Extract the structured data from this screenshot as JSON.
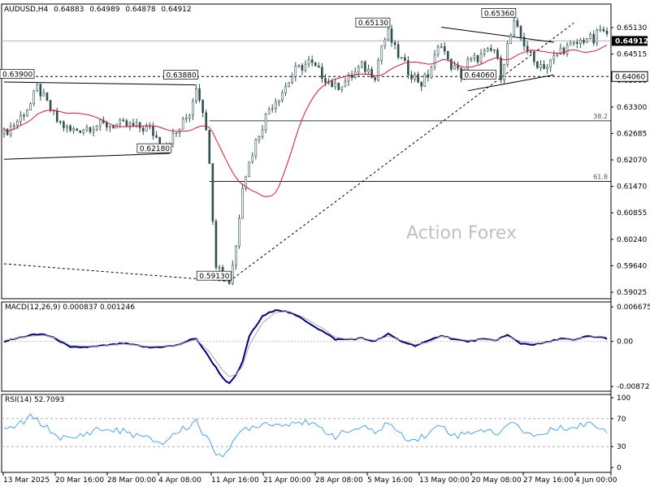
{
  "header": {
    "symbol": "AUDUSD,H4",
    "open": "0.64883",
    "high": "0.64989",
    "low": "0.64878",
    "close": "0.64912"
  },
  "watermark": "Action Forex",
  "colors": {
    "candle": "#2f4f4f",
    "ma": "#dc143c",
    "macd": "#000080",
    "signal": "#a9a9a9",
    "rsi": "#1e90ff",
    "grid": "#000000"
  },
  "chart_data": [
    {
      "type": "candlestick",
      "name": "price",
      "ylim": [
        0.589,
        0.656
      ],
      "yticks": [
        "0.65130",
        "0.64515",
        "0.63900",
        "0.63300",
        "0.62685",
        "0.62070",
        "0.61470",
        "0.60855",
        "0.60240",
        "0.59640",
        "0.59025"
      ],
      "current_price": "0.64912",
      "moving_average": "red line",
      "levels": [
        {
          "label": "0.64060",
          "value": 0.6406,
          "style": "dashed",
          "axis_badge": true
        },
        {
          "label": "38.2",
          "value": 0.63,
          "style": "solid",
          "kind": "fibonacci"
        },
        {
          "label": "61.8",
          "value": 0.6155,
          "style": "solid",
          "kind": "fibonacci"
        }
      ],
      "annotations": [
        {
          "text": "0.63900",
          "value": 0.639
        },
        {
          "text": "0.63880",
          "value": 0.6388
        },
        {
          "text": "0.62180",
          "value": 0.6218
        },
        {
          "text": "0.59130",
          "value": 0.5913
        },
        {
          "text": "0.65130",
          "value": 0.6513
        },
        {
          "text": "0.65360",
          "value": 0.6536
        },
        {
          "text": "0.64060",
          "value": 0.6406
        }
      ],
      "path": [
        [
          0,
          0.627
        ],
        [
          4,
          0.63
        ],
        [
          8,
          0.634
        ],
        [
          10,
          0.638
        ],
        [
          12,
          0.6355
        ],
        [
          16,
          0.63
        ],
        [
          20,
          0.6275
        ],
        [
          28,
          0.629
        ],
        [
          36,
          0.629
        ],
        [
          44,
          0.628
        ],
        [
          48,
          0.624
        ],
        [
          52,
          0.627
        ],
        [
          56,
          0.632
        ],
        [
          58,
          0.6385
        ],
        [
          60,
          0.633
        ],
        [
          62,
          0.621
        ],
        [
          63,
          0.607
        ],
        [
          64,
          0.596
        ],
        [
          66,
          0.5935
        ],
        [
          68,
          0.5915
        ],
        [
          70,
          0.6
        ],
        [
          72,
          0.615
        ],
        [
          74,
          0.62
        ],
        [
          76,
          0.625
        ],
        [
          80,
          0.633
        ],
        [
          84,
          0.637
        ],
        [
          88,
          0.642
        ],
        [
          92,
          0.644
        ],
        [
          96,
          0.641
        ],
        [
          100,
          0.638
        ],
        [
          104,
          0.64
        ],
        [
          108,
          0.643
        ],
        [
          112,
          0.641
        ],
        [
          114,
          0.648
        ],
        [
          116,
          0.651
        ],
        [
          118,
          0.647
        ],
        [
          122,
          0.642
        ],
        [
          126,
          0.639
        ],
        [
          128,
          0.641
        ],
        [
          132,
          0.649
        ],
        [
          134,
          0.644
        ],
        [
          138,
          0.641
        ],
        [
          140,
          0.644
        ],
        [
          144,
          0.6455
        ],
        [
          148,
          0.647
        ],
        [
          150,
          0.641
        ],
        [
          152,
          0.648
        ],
        [
          154,
          0.653
        ],
        [
          156,
          0.65
        ],
        [
          158,
          0.647
        ],
        [
          160,
          0.644
        ],
        [
          164,
          0.643
        ],
        [
          168,
          0.647
        ],
        [
          172,
          0.648
        ],
        [
          176,
          0.65
        ],
        [
          178,
          0.649
        ],
        [
          180,
          0.652
        ],
        [
          182,
          0.65
        ]
      ]
    },
    {
      "type": "line",
      "title": "MACD(12,26,9) 0.000837 0.001246",
      "ylim": [
        -0.009,
        0.007
      ],
      "yticks": [
        "0.006675",
        "0.00",
        "-0.008724"
      ],
      "series": [
        {
          "name": "MACD",
          "path": [
            [
              0,
              0.0
            ],
            [
              8,
              0.0012
            ],
            [
              12,
              0.0014
            ],
            [
              16,
              0.0004
            ],
            [
              20,
              -0.0012
            ],
            [
              28,
              -0.001
            ],
            [
              36,
              -0.0004
            ],
            [
              44,
              -0.0012
            ],
            [
              52,
              -0.0008
            ],
            [
              56,
              0.0002
            ],
            [
              58,
              0.0006
            ],
            [
              62,
              -0.0032
            ],
            [
              66,
              -0.007
            ],
            [
              68,
              -0.0082
            ],
            [
              70,
              -0.0066
            ],
            [
              72,
              -0.004
            ],
            [
              74,
              0.001
            ],
            [
              78,
              0.0048
            ],
            [
              82,
              0.0062
            ],
            [
              86,
              0.0056
            ],
            [
              90,
              0.0044
            ],
            [
              96,
              0.002
            ],
            [
              100,
              0.0004
            ],
            [
              104,
              0.0004
            ],
            [
              108,
              0.0006
            ],
            [
              112,
              0.0
            ],
            [
              116,
              0.0014
            ],
            [
              120,
              0.0
            ],
            [
              124,
              -0.0008
            ],
            [
              128,
              0.0
            ],
            [
              132,
              0.0012
            ],
            [
              136,
              0.0004
            ],
            [
              140,
              0.0
            ],
            [
              144,
              0.0004
            ],
            [
              148,
              0.0002
            ],
            [
              152,
              0.0012
            ],
            [
              156,
              -0.0004
            ],
            [
              160,
              -0.0006
            ],
            [
              164,
              -0.0002
            ],
            [
              168,
              0.0006
            ],
            [
              172,
              0.0002
            ],
            [
              176,
              0.001
            ],
            [
              180,
              0.0008
            ],
            [
              182,
              0.0006
            ]
          ]
        },
        {
          "name": "Signal",
          "path": [
            [
              0,
              0.0002
            ],
            [
              8,
              0.001
            ],
            [
              12,
              0.0012
            ],
            [
              16,
              0.0006
            ],
            [
              20,
              -0.0008
            ],
            [
              28,
              -0.001
            ],
            [
              36,
              -0.0005
            ],
            [
              44,
              -0.001
            ],
            [
              52,
              -0.0008
            ],
            [
              56,
              0.0
            ],
            [
              58,
              0.0004
            ],
            [
              62,
              -0.002
            ],
            [
              66,
              -0.0056
            ],
            [
              68,
              -0.0068
            ],
            [
              70,
              -0.0064
            ],
            [
              72,
              -0.0048
            ],
            [
              74,
              -0.0008
            ],
            [
              78,
              0.0036
            ],
            [
              82,
              0.0056
            ],
            [
              86,
              0.0058
            ],
            [
              90,
              0.0048
            ],
            [
              96,
              0.0026
            ],
            [
              100,
              0.0008
            ],
            [
              104,
              0.0004
            ],
            [
              108,
              0.0006
            ],
            [
              112,
              0.0002
            ],
            [
              116,
              0.001
            ],
            [
              120,
              0.0002
            ],
            [
              124,
              -0.0006
            ],
            [
              128,
              -0.0002
            ],
            [
              132,
              0.001
            ],
            [
              136,
              0.0006
            ],
            [
              140,
              0.0002
            ],
            [
              144,
              0.0004
            ],
            [
              148,
              0.0002
            ],
            [
              152,
              0.001
            ],
            [
              156,
              0.0
            ],
            [
              160,
              -0.0004
            ],
            [
              164,
              -0.0002
            ],
            [
              168,
              0.0004
            ],
            [
              172,
              0.0004
            ],
            [
              176,
              0.0008
            ],
            [
              180,
              0.001
            ],
            [
              182,
              0.0008
            ]
          ]
        }
      ]
    },
    {
      "type": "line",
      "title": "RSI(14) 52.7093",
      "ylim": [
        0,
        100
      ],
      "yticks": [
        "100",
        "70",
        "30",
        "0"
      ],
      "levels": [
        70,
        30
      ],
      "series": [
        {
          "name": "RSI",
          "path": [
            [
              0,
              52
            ],
            [
              4,
              60
            ],
            [
              8,
              72
            ],
            [
              10,
              68
            ],
            [
              12,
              60
            ],
            [
              16,
              45
            ],
            [
              20,
              40
            ],
            [
              28,
              55
            ],
            [
              36,
              52
            ],
            [
              44,
              40
            ],
            [
              48,
              35
            ],
            [
              52,
              50
            ],
            [
              56,
              60
            ],
            [
              58,
              68
            ],
            [
              60,
              50
            ],
            [
              62,
              35
            ],
            [
              64,
              22
            ],
            [
              66,
              20
            ],
            [
              68,
              25
            ],
            [
              70,
              40
            ],
            [
              72,
              55
            ],
            [
              76,
              60
            ],
            [
              80,
              65
            ],
            [
              84,
              60
            ],
            [
              88,
              68
            ],
            [
              92,
              62
            ],
            [
              96,
              55
            ],
            [
              100,
              45
            ],
            [
              104,
              52
            ],
            [
              108,
              58
            ],
            [
              112,
              50
            ],
            [
              116,
              65
            ],
            [
              120,
              45
            ],
            [
              124,
              40
            ],
            [
              128,
              48
            ],
            [
              132,
              62
            ],
            [
              136,
              45
            ],
            [
              140,
              50
            ],
            [
              144,
              55
            ],
            [
              148,
              48
            ],
            [
              152,
              58
            ],
            [
              154,
              68
            ],
            [
              156,
              55
            ],
            [
              160,
              45
            ],
            [
              164,
              50
            ],
            [
              168,
              60
            ],
            [
              172,
              55
            ],
            [
              176,
              65
            ],
            [
              180,
              58
            ],
            [
              182,
              53
            ]
          ]
        }
      ]
    }
  ],
  "x_axis": {
    "labels": [
      "13 Mar 2025",
      "20 Mar 16:00",
      "28 Mar 00:00",
      "4 Apr 08:00",
      "11 Apr 16:00",
      "21 Apr 00:00",
      "28 Apr 08:00",
      "5 May 16:00",
      "13 May 00:00",
      "20 May 08:00",
      "27 May 16:00",
      "4 Jun 00:00"
    ]
  }
}
